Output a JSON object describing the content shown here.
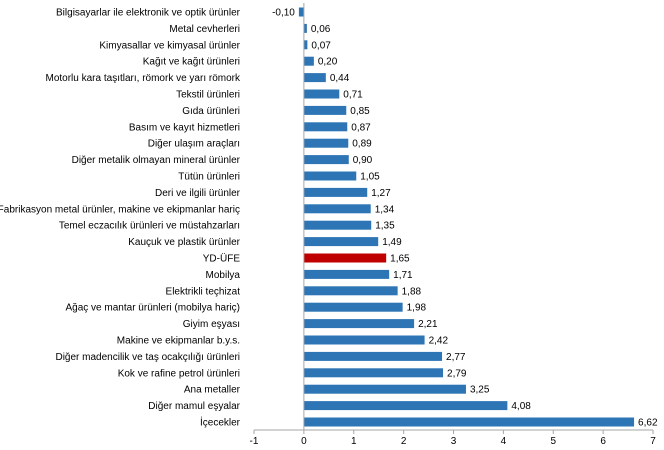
{
  "chart_data": {
    "type": "bar",
    "orientation": "horizontal",
    "categories": [
      "Bilgisayarlar ile elektronik ve optik ürünler",
      "Metal cevherleri",
      "Kimyasallar ve kimyasal ürünler",
      "Kağıt ve kağıt ürünleri",
      "Motorlu kara taşıtları, römork ve yarı römork",
      "Tekstil ürünleri",
      "Gıda ürünleri",
      "Basım ve kayıt hizmetleri",
      "Diğer ulaşım araçları",
      "Diğer metalik olmayan mineral ürünler",
      "Tütün ürünleri",
      "Deri ve ilgili ürünler",
      "Fabrikasyon metal ürünler, makine ve ekipmanlar hariç",
      "Temel eczacılık ürünleri ve müstahzarları",
      "Kauçuk ve plastik ürünler",
      "YD-ÜFE",
      "Mobilya",
      "Elektrikli teçhizat",
      "Ağaç ve mantar ürünleri (mobilya hariç)",
      "Giyim eşyası",
      "Makine ve ekipmanlar b.y.s.",
      "Diğer madencilik ve taş ocakçılığı ürünleri",
      "Kok ve rafine petrol ürünleri",
      "Ana metaller",
      "Diğer mamul eşyalar",
      "İçecekler"
    ],
    "values": [
      -0.1,
      0.06,
      0.07,
      0.2,
      0.44,
      0.71,
      0.85,
      0.87,
      0.89,
      0.9,
      1.05,
      1.27,
      1.34,
      1.35,
      1.49,
      1.65,
      1.71,
      1.88,
      1.98,
      2.21,
      2.42,
      2.77,
      2.79,
      3.25,
      4.08,
      6.62
    ],
    "value_labels": [
      "-0,10",
      "0,06",
      "0,07",
      "0,20",
      "0,44",
      "0,71",
      "0,85",
      "0,87",
      "0,89",
      "0,90",
      "1,05",
      "1,27",
      "1,34",
      "1,35",
      "1,49",
      "1,65",
      "1,71",
      "1,88",
      "1,98",
      "2,21",
      "2,42",
      "2,77",
      "2,79",
      "3,25",
      "4,08",
      "6,62"
    ],
    "highlight_category": "YD-ÜFE",
    "xlim": [
      -1,
      7
    ],
    "x_ticks": [
      -1,
      0,
      1,
      2,
      3,
      4,
      5,
      6,
      7
    ],
    "x_tick_labels": [
      "-1",
      "0",
      "1",
      "2",
      "3",
      "4",
      "5",
      "6",
      "7"
    ],
    "grid": false,
    "legend": "none",
    "title": "",
    "xlabel": "",
    "ylabel": "",
    "colors": {
      "bar": "#2e75b6",
      "highlight": "#c00000",
      "axis": "#a6a6a6"
    }
  }
}
